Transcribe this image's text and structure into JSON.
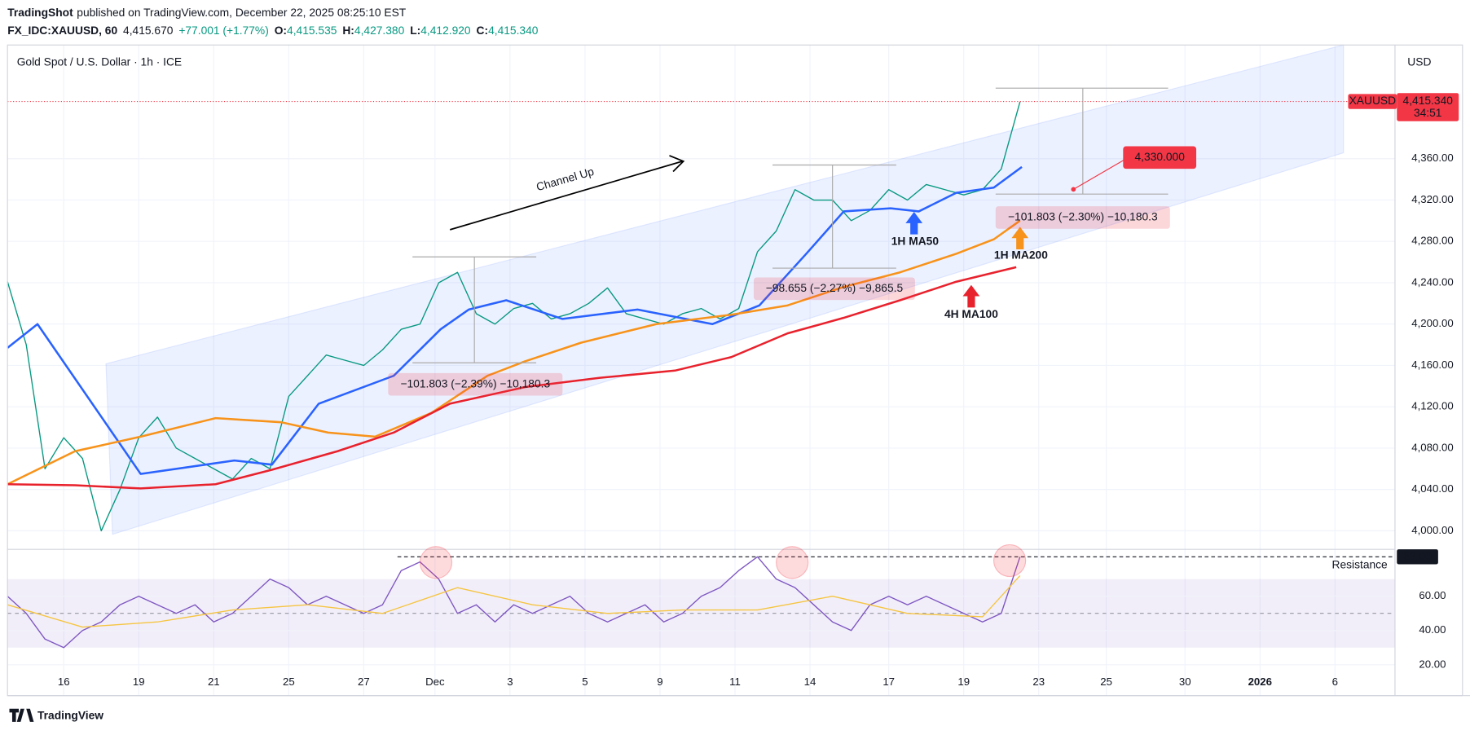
{
  "header": {
    "publisher": "TradingShot",
    "published": "published on TradingView.com, December 22, 2025 08:25:10 EST",
    "symbol": "FX_IDC:XAUUSD, 60",
    "last": "4,415.670",
    "change": "+77.001 (+1.77%)",
    "ohlc": [
      {
        "label": "O:",
        "value": "4,415.535"
      },
      {
        "label": "H:",
        "value": "4,427.380"
      },
      {
        "label": "L:",
        "value": "4,412.920"
      },
      {
        "label": "C:",
        "value": "4,415.340"
      }
    ]
  },
  "chart_data": [
    {
      "type": "line",
      "title": "Gold Spot / U.S. Dollar · 1h · ICE",
      "currency": "USD",
      "symbol_tag": "XAUUSD",
      "countdown": "34:51",
      "xlim": [
        0,
        37
      ],
      "xticks": [
        {
          "value": 1.5,
          "label": "16"
        },
        {
          "value": 3.5,
          "label": "19"
        },
        {
          "value": 5.5,
          "label": "21"
        },
        {
          "value": 7.5,
          "label": "25"
        },
        {
          "value": 9.5,
          "label": "27"
        },
        {
          "value": 11.4,
          "label": "Dec"
        },
        {
          "value": 13.4,
          "label": "3"
        },
        {
          "value": 15.4,
          "label": "5"
        },
        {
          "value": 17.4,
          "label": "9"
        },
        {
          "value": 19.4,
          "label": "11"
        },
        {
          "value": 21.4,
          "label": "14"
        },
        {
          "value": 23.5,
          "label": "17"
        },
        {
          "value": 25.5,
          "label": "19"
        },
        {
          "value": 27.5,
          "label": "23"
        },
        {
          "value": 29.3,
          "label": "25"
        },
        {
          "value": 31.4,
          "label": "30"
        },
        {
          "value": 33.4,
          "label": "2026"
        },
        {
          "value": 35.4,
          "label": "6"
        }
      ],
      "ylim": [
        3982,
        4470
      ],
      "yticks": [
        {
          "value": 4000,
          "label": "4,000.00"
        },
        {
          "value": 4040,
          "label": "4,040.00"
        },
        {
          "value": 4080,
          "label": "4,080.00"
        },
        {
          "value": 4120,
          "label": "4,120.00"
        },
        {
          "value": 4160,
          "label": "4,160.00"
        },
        {
          "value": 4200,
          "label": "4,200.00"
        },
        {
          "value": 4240,
          "label": "4,240.00"
        },
        {
          "value": 4280,
          "label": "4,280.00"
        },
        {
          "value": 4320,
          "label": "4,320.00"
        },
        {
          "value": 4360,
          "label": "4,360.00"
        }
      ],
      "grid": true,
      "last_price": {
        "value": 4415.34,
        "label": "4,415.340"
      },
      "target": {
        "value": 4330,
        "label": "4,330.000"
      },
      "annotations": [
        "Channel Up",
        "1H MA50",
        "1H MA200",
        "4H MA100",
        "−101.803 (−2.39%) −10,180.3",
        "−98.655 (−2.27%) −9,865.5",
        "−101.803 (−2.30%) −10,180.3"
      ],
      "series": [
        {
          "color": "#089981",
          "x": [
            0,
            0.5,
            1,
            1.5,
            2,
            2.5,
            3,
            3.5,
            4,
            4.5,
            5,
            5.5,
            6,
            6.5,
            7,
            7.5,
            8,
            8.5,
            9,
            9.5,
            10,
            10.5,
            11,
            11.5,
            12,
            12.5,
            13,
            13.5,
            14,
            14.5,
            15,
            15.5,
            16,
            16.5,
            17,
            17.5,
            18,
            18.5,
            19,
            19.5,
            20,
            20.5,
            21,
            21.5,
            22,
            22.5,
            23,
            23.5,
            24,
            24.5,
            25,
            25.5,
            26,
            26.5,
            27
          ],
          "values": [
            4241,
            4180,
            4060,
            4090,
            4070,
            4000,
            4040,
            4090,
            4110,
            4080,
            4070,
            4060,
            4050,
            4070,
            4060,
            4130,
            4150,
            4170,
            4165,
            4160,
            4175,
            4195,
            4200,
            4240,
            4250,
            4210,
            4200,
            4215,
            4220,
            4205,
            4210,
            4220,
            4235,
            4210,
            4205,
            4200,
            4210,
            4215,
            4205,
            4215,
            4270,
            4290,
            4330,
            4320,
            4320,
            4300,
            4310,
            4330,
            4320,
            4335,
            4330,
            4325,
            4330,
            4350,
            4415
          ]
        },
        {
          "color": "#2962ff",
          "x": [
            0,
            0.8,
            3.55,
            6.05,
            7.05,
            8.3,
            10.3,
            11.55,
            12.3,
            13.3,
            14.8,
            16.8,
            18.8,
            20.05,
            21.3,
            22.3,
            23.55,
            24.3,
            25.3,
            26.3,
            27.05
          ],
          "values": [
            4177,
            4200,
            4055,
            4068,
            4064,
            4123,
            4150,
            4195,
            4214,
            4223,
            4205,
            4214,
            4200,
            4218,
            4268,
            4309,
            4312,
            4309,
            4327,
            4332,
            4352
          ]
        },
        {
          "color": "#f7931a",
          "x": [
            0,
            1.8,
            3.55,
            5.55,
            7.3,
            8.55,
            9.8,
            11.3,
            12.8,
            13.8,
            15.3,
            17.3,
            19.3,
            20.8,
            22.3,
            23.8,
            25.3,
            26.3,
            27
          ],
          "values": [
            4045,
            4077,
            4091,
            4109,
            4105,
            4095,
            4091,
            4114,
            4150,
            4164,
            4182,
            4200,
            4209,
            4218,
            4236,
            4250,
            4268,
            4282,
            4300
          ]
        },
        {
          "color": "#e8222d",
          "x": [
            0,
            1.8,
            3.55,
            5.55,
            7.05,
            8.8,
            10.3,
            11.8,
            13.8,
            15.8,
            17.8,
            19.3,
            20.8,
            22.3,
            23.8,
            25.3,
            26.9
          ],
          "values": [
            4045,
            4044,
            4041,
            4045,
            4059,
            4077,
            4095,
            4123,
            4139,
            4148,
            4155,
            4168,
            4191,
            4206,
            4223,
            4241,
            4255
          ]
        }
      ]
    },
    {
      "type": "line",
      "xlim": [
        0,
        37
      ],
      "ylim": [
        18.4,
        86.8
      ],
      "yticks": [
        {
          "value": 20,
          "label": "20.00"
        },
        {
          "value": 40,
          "label": "40.00"
        },
        {
          "value": 60,
          "label": "60.00"
        }
      ],
      "band": [
        30,
        70
      ],
      "midline": 50,
      "resistance": {
        "value": 83,
        "label": "83.00",
        "text": "Resistance"
      },
      "series": [
        {
          "color": "#7e57c2",
          "x": [
            0,
            0.5,
            1,
            1.5,
            2,
            2.5,
            3,
            3.5,
            4,
            4.5,
            5,
            5.5,
            6,
            6.5,
            7,
            7.5,
            8,
            8.5,
            9,
            9.5,
            10,
            10.5,
            11,
            11.5,
            12,
            12.5,
            13,
            13.5,
            14,
            14.5,
            15,
            15.5,
            16,
            16.5,
            17,
            17.5,
            18,
            18.5,
            19,
            19.5,
            20,
            20.5,
            21,
            21.5,
            22,
            22.5,
            23,
            23.5,
            24,
            24.5,
            25,
            25.5,
            26,
            26.5,
            27
          ],
          "values": [
            60,
            50,
            35,
            30,
            40,
            45,
            55,
            60,
            55,
            50,
            55,
            45,
            50,
            60,
            70,
            65,
            55,
            60,
            55,
            50,
            55,
            75,
            80,
            70,
            50,
            55,
            45,
            55,
            50,
            55,
            60,
            50,
            45,
            50,
            55,
            45,
            50,
            60,
            65,
            75,
            83,
            70,
            65,
            55,
            45,
            40,
            55,
            60,
            55,
            60,
            55,
            50,
            45,
            50,
            83
          ]
        },
        {
          "color": "#f5c542",
          "x": [
            0,
            2,
            4,
            6,
            8,
            10,
            12,
            14,
            16,
            18,
            20,
            22,
            24,
            26,
            27
          ],
          "values": [
            55,
            42,
            45,
            52,
            55,
            50,
            65,
            55,
            50,
            52,
            52,
            60,
            50,
            48,
            72
          ]
        }
      ]
    }
  ],
  "footer": {
    "brand": "TradingView"
  }
}
